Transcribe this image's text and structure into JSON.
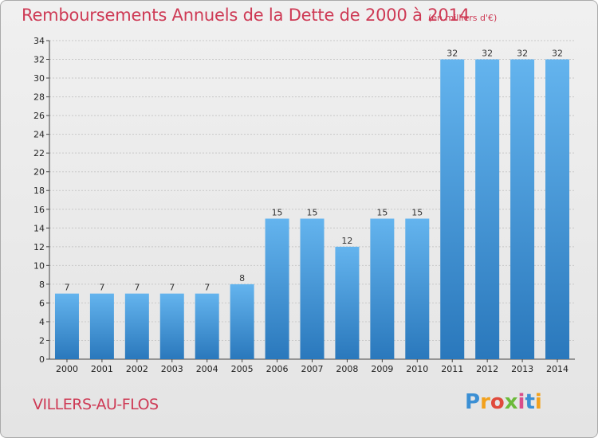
{
  "header": {
    "title": "Remboursements Annuels de la Dette de 2000 à 2014",
    "unit": "(en milliers d'€)"
  },
  "footer": {
    "commune": "VILLERS-AU-FLOS",
    "logo_text": "Proxiti"
  },
  "colors": {
    "title": "#ce3a55",
    "bar_top": "#64b4ee",
    "bar_bottom": "#2a78bc",
    "grid": "#c8c8c8"
  },
  "chart_data": {
    "type": "bar",
    "title": "Remboursements Annuels de la Dette de 2000 à 2014",
    "xlabel": "",
    "ylabel": "",
    "categories": [
      "2000",
      "2001",
      "2002",
      "2003",
      "2004",
      "2005",
      "2006",
      "2007",
      "2008",
      "2009",
      "2010",
      "2011",
      "2012",
      "2013",
      "2014"
    ],
    "values": [
      7,
      7,
      7,
      7,
      7,
      8,
      15,
      15,
      12,
      15,
      15,
      32,
      32,
      32,
      32
    ],
    "ylim": [
      0,
      34
    ],
    "yticks": [
      0,
      2,
      4,
      6,
      8,
      10,
      12,
      14,
      16,
      18,
      20,
      22,
      24,
      26,
      28,
      30,
      32,
      34
    ],
    "grid": true,
    "data_labels": true
  }
}
